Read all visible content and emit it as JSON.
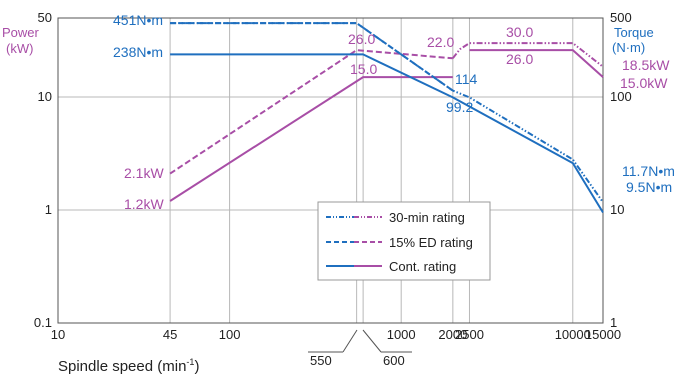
{
  "chart_data": {
    "type": "line",
    "x_scale": "log",
    "y_scale": "log",
    "xlim": [
      10,
      15000
    ],
    "ylim_power_kW": [
      0.1,
      50
    ],
    "ylim_torque_Nm": [
      1,
      500
    ],
    "grid": true,
    "x_ticks": [
      "10",
      "45",
      "100",
      "1000",
      "2000",
      "2500",
      "10000",
      "15000"
    ],
    "x_tick_values": [
      10,
      45,
      100,
      1000,
      2000,
      2500,
      10000,
      15000
    ],
    "y_ticks_left": [
      "50",
      "10",
      "1",
      "0.1"
    ],
    "y_ticks_right": [
      "500",
      "100",
      "10",
      "1"
    ],
    "left_axis_label": [
      "Power",
      "(kW)"
    ],
    "right_axis_label": [
      "Torque",
      "(N·m)"
    ],
    "xlabel": "Spindle speed (min-1)",
    "xlabel_main": "Spindle speed",
    "xlabel_unit": "(min",
    "xlabel_exp": "-1",
    "xlabel_close": ")",
    "callouts": [
      {
        "text": "550",
        "x": 550
      },
      {
        "text": "600",
        "x": 600
      }
    ],
    "legend": [
      "30-min rating",
      "15% ED rating",
      "Cont. rating"
    ],
    "legend_position": "bottom-center",
    "colors": {
      "torque": "#1f6fbf",
      "power": "#a84ea6"
    },
    "torque_series": [
      {
        "name": "30-min rating",
        "style": "dashdotdot",
        "points": [
          [
            45,
            451
          ],
          [
            550,
            451
          ],
          [
            2000,
            114
          ],
          [
            2500,
            99.2
          ],
          [
            10000,
            28
          ],
          [
            15000,
            11.7
          ]
        ]
      },
      {
        "name": "15% ED rating",
        "style": "dashed",
        "points": [
          [
            45,
            451
          ],
          [
            550,
            451
          ],
          [
            2000,
            114
          ]
        ]
      },
      {
        "name": "Cont. rating",
        "style": "solid",
        "points": [
          [
            45,
            238
          ],
          [
            600,
            238
          ],
          [
            2000,
            99.2
          ],
          [
            10000,
            26
          ],
          [
            15000,
            9.5
          ]
        ]
      }
    ],
    "power_series": [
      {
        "name": "30-min rating",
        "style": "dashdotdot",
        "points": [
          [
            2000,
            22.0
          ],
          [
            2200,
            26.5
          ],
          [
            2500,
            30.0
          ],
          [
            10000,
            30.0
          ],
          [
            15000,
            18.5
          ]
        ]
      },
      {
        "name": "15% ED rating",
        "style": "dashed",
        "points": [
          [
            45,
            2.1
          ],
          [
            550,
            26.0
          ],
          [
            2000,
            22.0
          ]
        ]
      },
      {
        "name": "Cont. rating",
        "style": "solid",
        "points": [
          [
            45,
            1.2
          ],
          [
            600,
            15.0
          ],
          [
            2000,
            15.0
          ]
        ],
        "points2": [
          [
            2500,
            26.0
          ],
          [
            10000,
            26.0
          ],
          [
            15000,
            15.0
          ]
        ]
      }
    ],
    "annotations": [
      {
        "text": "451N•m",
        "axis": "torque"
      },
      {
        "text": "238N•m",
        "axis": "torque"
      },
      {
        "text": "114",
        "axis": "torque"
      },
      {
        "text": "99.2",
        "axis": "torque"
      },
      {
        "text": "11.7N•m",
        "axis": "torque"
      },
      {
        "text": "9.5N•m",
        "axis": "torque"
      },
      {
        "text": "26.0",
        "axis": "power"
      },
      {
        "text": "22.0",
        "axis": "power"
      },
      {
        "text": "30.0",
        "axis": "power"
      },
      {
        "text": "26.0",
        "axis": "power"
      },
      {
        "text": "15.0",
        "axis": "power"
      },
      {
        "text": "2.1kW",
        "axis": "power"
      },
      {
        "text": "1.2kW",
        "axis": "power"
      },
      {
        "text": "18.5kW",
        "axis": "power"
      },
      {
        "text": "15.0kW",
        "axis": "power"
      }
    ]
  }
}
